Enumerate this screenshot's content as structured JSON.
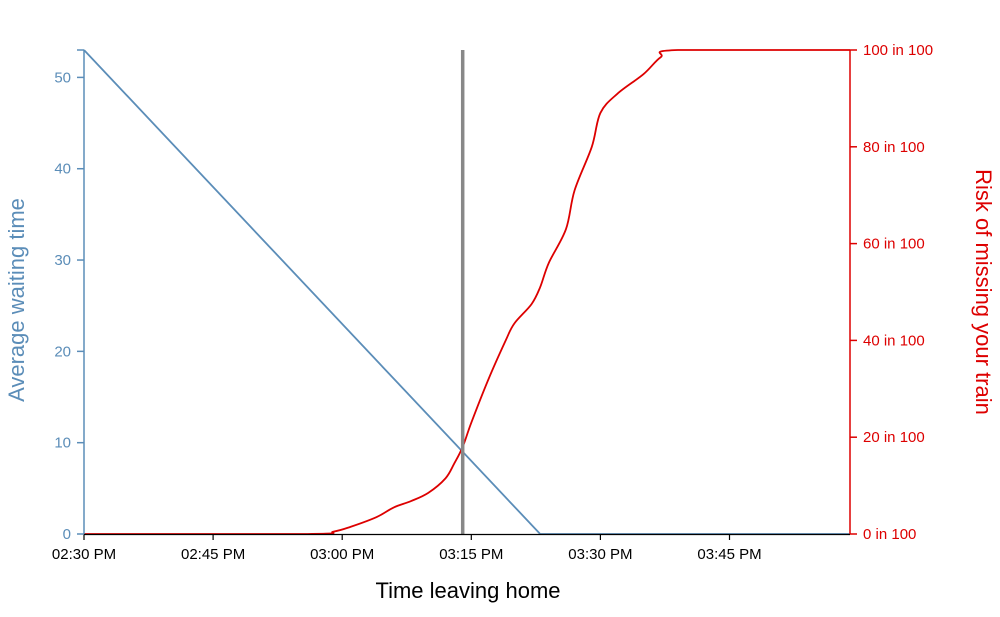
{
  "chart_data": {
    "type": "line",
    "xlabel": "Time leaving home",
    "x_ticks": [
      "02:30 PM",
      "02:45 PM",
      "03:00 PM",
      "03:15 PM",
      "03:30 PM",
      "03:45 PM"
    ],
    "xlim": [
      "02:30 PM",
      "03:59 PM"
    ],
    "left_axis": {
      "label": "Average waiting time",
      "ticks": [
        0,
        10,
        20,
        30,
        40,
        50
      ],
      "ylim": [
        0,
        53
      ],
      "color": "#5b8db8"
    },
    "right_axis": {
      "label": "Risk of missing your train",
      "ticks": [
        "0 in 100",
        "20 in 100",
        "40 in 100",
        "60 in 100",
        "80 in 100",
        "100 in 100"
      ],
      "ylim": [
        0,
        100
      ],
      "color": "#dd0000"
    },
    "marker_line": {
      "x": "03:14 PM",
      "color": "#888888"
    },
    "series": [
      {
        "axis": "left",
        "color": "#5b8db8",
        "points": [
          {
            "x": "02:30 PM",
            "y": 53
          },
          {
            "x": "03:23 PM",
            "y": 0
          },
          {
            "x": "03:59 PM",
            "y": 0
          }
        ]
      },
      {
        "axis": "right",
        "color": "#dd0000",
        "points": [
          {
            "x": "02:30 PM",
            "y": 0
          },
          {
            "x": "02:56 PM",
            "y": 0
          },
          {
            "x": "02:59 PM",
            "y": 0.5
          },
          {
            "x": "03:01 PM",
            "y": 1.5
          },
          {
            "x": "03:04 PM",
            "y": 3.5
          },
          {
            "x": "03:06 PM",
            "y": 5.5
          },
          {
            "x": "03:08 PM",
            "y": 6.8
          },
          {
            "x": "03:10 PM",
            "y": 8.5
          },
          {
            "x": "03:12 PM",
            "y": 11.5
          },
          {
            "x": "03:13 PM",
            "y": 14.5
          },
          {
            "x": "03:14 PM",
            "y": 18
          },
          {
            "x": "03:15 PM",
            "y": 23
          },
          {
            "x": "03:17 PM",
            "y": 32
          },
          {
            "x": "03:19 PM",
            "y": 40
          },
          {
            "x": "03:20 PM",
            "y": 43.5
          },
          {
            "x": "03:22 PM",
            "y": 47.5
          },
          {
            "x": "03:23 PM",
            "y": 51
          },
          {
            "x": "03:24 PM",
            "y": 56
          },
          {
            "x": "03:26 PM",
            "y": 63
          },
          {
            "x": "03:27 PM",
            "y": 71
          },
          {
            "x": "03:29 PM",
            "y": 80
          },
          {
            "x": "03:30 PM",
            "y": 87
          },
          {
            "x": "03:32 PM",
            "y": 91
          },
          {
            "x": "03:35 PM",
            "y": 95
          },
          {
            "x": "03:37 PM",
            "y": 98.5
          },
          {
            "x": "03:39 PM",
            "y": 100
          },
          {
            "x": "03:59 PM",
            "y": 100
          }
        ]
      }
    ]
  }
}
